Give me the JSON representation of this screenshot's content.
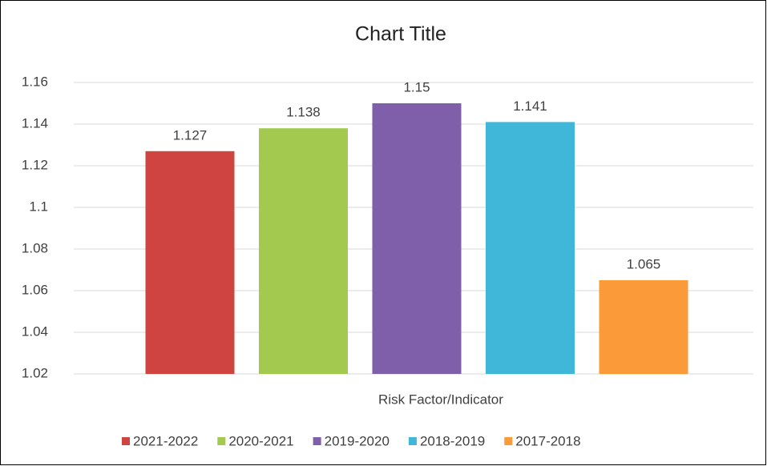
{
  "chart_data": {
    "type": "bar",
    "title": "Chart Title",
    "xlabel": "Risk Factor/Indicator",
    "categories": [
      "Risk Factor/Indicator"
    ],
    "series": [
      {
        "name": "2021-2022",
        "color": "#cf4440",
        "values": [
          1.127
        ]
      },
      {
        "name": "2020-2021",
        "color": "#a3c94f",
        "values": [
          1.138
        ]
      },
      {
        "name": "2019-2020",
        "color": "#7f5fa9",
        "values": [
          1.15
        ]
      },
      {
        "name": "2018-2019",
        "color": "#40b7d8",
        "values": [
          1.141
        ]
      },
      {
        "name": "2017-2018",
        "color": "#fb9a38",
        "values": [
          1.065
        ]
      }
    ],
    "ylim": [
      1.02,
      1.16
    ],
    "yticks": [
      1.02,
      1.04,
      1.06,
      1.08,
      1.1,
      1.12,
      1.14,
      1.16
    ],
    "grid": true,
    "legend": "bottom",
    "data_labels": true
  }
}
